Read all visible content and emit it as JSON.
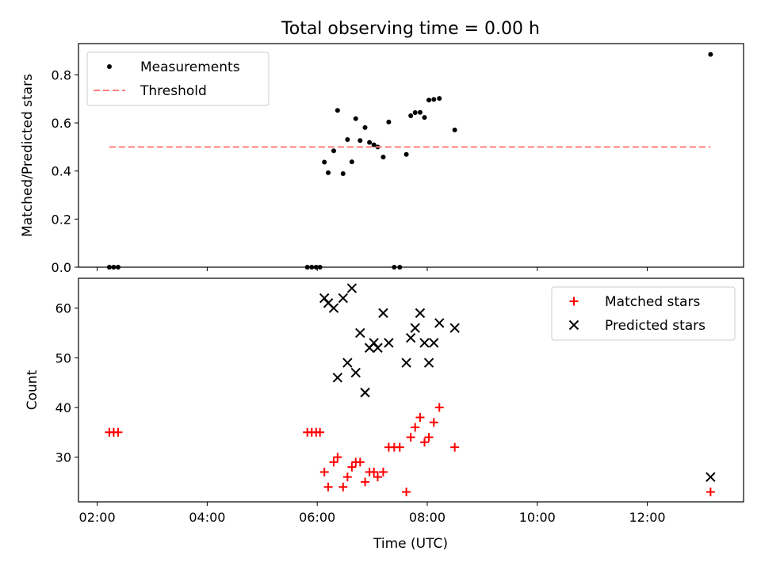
{
  "figure": {
    "title": "Total observing time = 0.00 h",
    "xlabel": "Time (UTC)"
  },
  "colors": {
    "measurements": "#000000",
    "threshold": "#ff7f7f",
    "matched": "#ff0000",
    "predicted": "#000000"
  },
  "chart_data": [
    {
      "type": "scatter",
      "name": "ratio-panel",
      "ylabel": "Matched/Predicted stars",
      "xlim": [
        1.66,
        13.75
      ],
      "ylim": [
        0,
        0.93
      ],
      "yticks": [
        0.0,
        0.2,
        0.4,
        0.6,
        0.8
      ],
      "ytick_labels": [
        "0.0",
        "0.2",
        "0.4",
        "0.6",
        "0.8"
      ],
      "xticks": [
        2,
        4,
        6,
        8,
        10,
        12
      ],
      "show_xtick_labels": false,
      "grid": false,
      "legend": "upper-left",
      "series": [
        {
          "name": "Measurements",
          "marker": "dot",
          "x": [
            2.22,
            2.3,
            2.38,
            5.82,
            5.9,
            5.98,
            6.05,
            6.13,
            6.2,
            6.3,
            6.37,
            6.47,
            6.55,
            6.63,
            6.7,
            6.78,
            6.87,
            6.95,
            7.03,
            7.1,
            7.2,
            7.3,
            7.4,
            7.5,
            7.62,
            7.7,
            7.78,
            7.87,
            7.95,
            8.03,
            8.12,
            8.22,
            8.5,
            13.15
          ],
          "y": [
            0.0,
            0.0,
            0.0,
            0.0,
            0.0,
            0.0,
            0.0,
            0.437,
            0.393,
            0.484,
            0.652,
            0.389,
            0.531,
            0.438,
            0.618,
            0.527,
            0.581,
            0.519,
            0.509,
            0.5,
            0.458,
            0.604,
            0.0,
            0.0,
            0.469,
            0.63,
            0.643,
            0.644,
            0.623,
            0.695,
            0.698,
            0.702,
            0.571,
            0.885
          ]
        },
        {
          "name": "Threshold",
          "style": "dashed-line",
          "x": [
            2.22,
            13.15
          ],
          "y": [
            0.5,
            0.5
          ]
        }
      ]
    },
    {
      "type": "scatter",
      "name": "count-panel",
      "ylabel": "Count",
      "xlim": [
        1.66,
        13.75
      ],
      "ylim": [
        21,
        66
      ],
      "yticks": [
        30,
        40,
        50,
        60
      ],
      "ytick_labels": [
        "30",
        "40",
        "50",
        "60"
      ],
      "xticks": [
        2,
        4,
        6,
        8,
        10,
        12
      ],
      "xtick_labels": [
        "02:00",
        "04:00",
        "06:00",
        "08:00",
        "10:00",
        "12:00"
      ],
      "grid": false,
      "legend": "upper-right",
      "series": [
        {
          "name": "Matched stars",
          "marker": "plus",
          "x": [
            2.22,
            2.3,
            2.38,
            5.82,
            5.9,
            5.98,
            6.05,
            6.13,
            6.2,
            6.3,
            6.37,
            6.47,
            6.55,
            6.63,
            6.7,
            6.78,
            6.87,
            6.95,
            7.03,
            7.1,
            7.2,
            7.3,
            7.4,
            7.5,
            7.62,
            7.7,
            7.78,
            7.87,
            7.95,
            8.03,
            8.12,
            8.22,
            8.5,
            13.15
          ],
          "y": [
            35,
            35,
            35,
            35,
            35,
            35,
            35,
            27,
            24,
            29,
            30,
            24,
            26,
            28,
            29,
            29,
            25,
            27,
            27,
            26,
            27,
            32,
            32,
            32,
            23,
            34,
            36,
            38,
            33,
            34,
            37,
            40,
            32,
            23
          ]
        },
        {
          "name": "Predicted stars",
          "marker": "x",
          "x": [
            6.13,
            6.2,
            6.3,
            6.37,
            6.47,
            6.55,
            6.63,
            6.7,
            6.78,
            6.87,
            6.95,
            7.03,
            7.1,
            7.2,
            7.3,
            7.62,
            7.7,
            7.78,
            7.87,
            7.95,
            8.03,
            8.12,
            8.22,
            8.5,
            13.15
          ],
          "y": [
            62,
            61,
            60,
            46,
            62,
            49,
            64,
            47,
            55,
            43,
            52,
            53,
            52,
            59,
            53,
            49,
            54,
            56,
            59,
            53,
            49,
            53,
            57,
            56,
            26
          ]
        }
      ]
    }
  ]
}
